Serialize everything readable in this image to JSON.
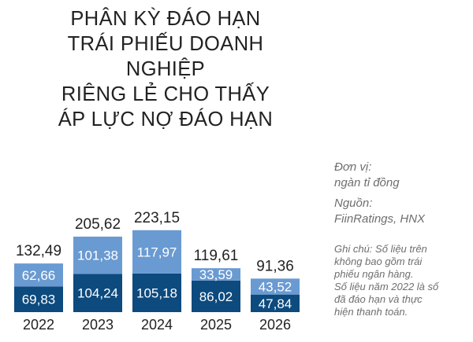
{
  "title_lines": [
    "PHÂN KỲ ĐÁO HẠN",
    "TRÁI PHIẾU DOANH NGHIỆP",
    "RIÊNG LẺ CHO THẤY",
    "ÁP LỰC NỢ ĐÁO HẠN"
  ],
  "unit_lines": [
    "Đơn vị:",
    "ngàn tỉ đồng"
  ],
  "source_lines": [
    "Nguồn:",
    "FiinRatings, HNX"
  ],
  "note_lines": [
    "Ghi chú: Số liệu trên",
    "không bao gồm trái",
    "phiếu ngân hàng.",
    "Số liệu năm 2022 là số",
    "đã đáo hạn và thực",
    "hiện thanh toán."
  ],
  "colors": {
    "bottom": "#0d4a7e",
    "top": "#6a9ad2",
    "text": "#222222",
    "side": "#6e6e6e"
  },
  "chart_data": {
    "type": "bar",
    "stacked": true,
    "categories": [
      "2022",
      "2023",
      "2024",
      "2025",
      "2026"
    ],
    "series": [
      {
        "values": [
          69.83,
          104.24,
          105.18,
          86.02,
          47.84
        ]
      },
      {
        "values": [
          62.66,
          101.38,
          117.97,
          33.59,
          43.52
        ]
      }
    ],
    "totals": [
      "132,49",
      "205,62",
      "223,15",
      "119,61",
      "91,36"
    ],
    "bottom_labels": [
      "69,83",
      "104,24",
      "105,18",
      "86,02",
      "47,84"
    ],
    "top_labels": [
      "62,66",
      "101,38",
      "117,97",
      "33,59",
      "43,52"
    ],
    "legend": "none",
    "grid": false
  }
}
